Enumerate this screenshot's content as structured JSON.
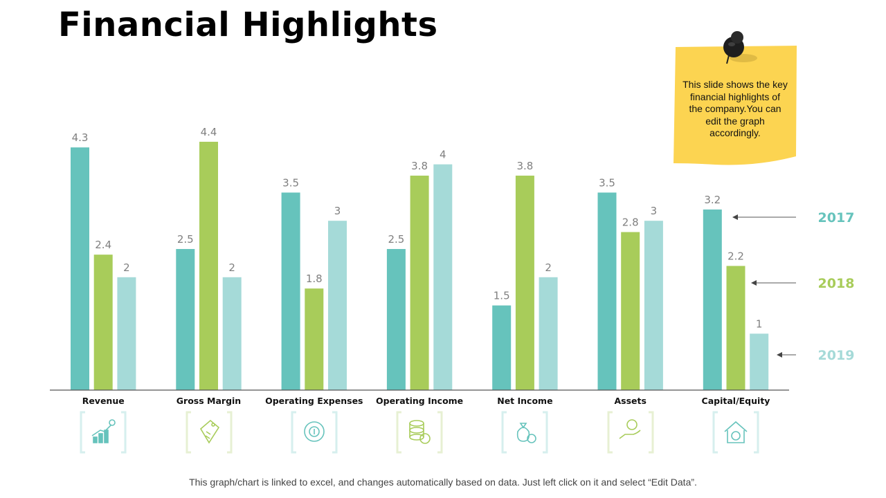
{
  "page": {
    "title": "Financial Highlights",
    "footer_note": "This graph/chart is linked to excel, and changes automatically based on data. Just left click on it and select “Edit Data”."
  },
  "sticky_note": {
    "text": "This slide shows the key financial highlights of the company.You can edit the graph accordingly."
  },
  "colors": {
    "series_2017": "#66c3bc",
    "series_2018": "#a8cc5a",
    "series_2019": "#a5dad8",
    "note_yellow": "#fcd451",
    "axis": "#555555"
  },
  "icons": [
    {
      "category": "Revenue",
      "name": "growth-chart-icon",
      "color": "#66c3bc"
    },
    {
      "category": "Gross Margin",
      "name": "money-tag-icon",
      "color": "#a8cc5a"
    },
    {
      "category": "Operating Expenses",
      "name": "cash-cycle-icon",
      "color": "#66c3bc"
    },
    {
      "category": "Operating Income",
      "name": "coin-stack-icon",
      "color": "#a8cc5a"
    },
    {
      "category": "Net Income",
      "name": "money-bag-icon",
      "color": "#66c3bc"
    },
    {
      "category": "Assets",
      "name": "hand-coin-icon",
      "color": "#a8cc5a"
    },
    {
      "category": "Capital/Equity",
      "name": "house-dollar-icon",
      "color": "#66c3bc"
    }
  ],
  "chart_data": {
    "type": "bar",
    "title": "",
    "xlabel": "",
    "ylabel": "",
    "ylim": [
      0,
      4.4
    ],
    "grid": false,
    "legend_position": "right",
    "categories": [
      "Revenue",
      "Gross Margin",
      "Operating Expenses",
      "Operating Income",
      "Net Income",
      "Assets",
      "Capital/Equity"
    ],
    "series": [
      {
        "name": "2017",
        "color": "#66c3bc",
        "values": [
          4.3,
          2.5,
          3.5,
          2.5,
          1.5,
          3.5,
          3.2
        ]
      },
      {
        "name": "2018",
        "color": "#a8cc5a",
        "values": [
          2.4,
          4.4,
          1.8,
          3.8,
          3.8,
          2.8,
          2.2
        ]
      },
      {
        "name": "2019",
        "color": "#a5dad8",
        "values": [
          2,
          2,
          3,
          4,
          2,
          3,
          1
        ]
      }
    ]
  }
}
